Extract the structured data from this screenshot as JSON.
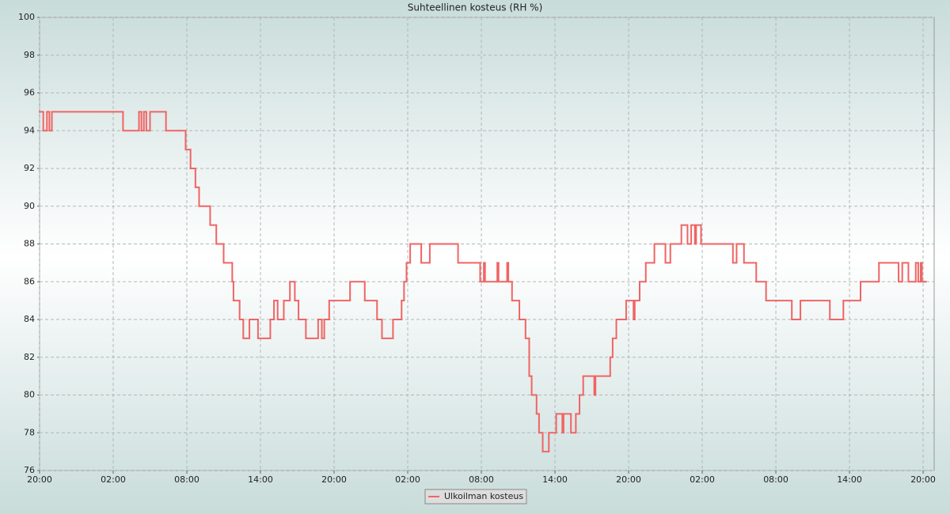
{
  "chart_data": {
    "type": "line",
    "title": "Suhteellinen kosteus (RH %)",
    "drawstyle": "steps-post",
    "grid": true,
    "xlim": [
      0,
      72.9
    ],
    "ylim": [
      76,
      100
    ],
    "xticks": [
      {
        "value": 0,
        "label": "20:00"
      },
      {
        "value": 6,
        "label": "02:00"
      },
      {
        "value": 12,
        "label": "08:00"
      },
      {
        "value": 18,
        "label": "14:00"
      },
      {
        "value": 24,
        "label": "20:00"
      },
      {
        "value": 30,
        "label": "02:00"
      },
      {
        "value": 36,
        "label": "08:00"
      },
      {
        "value": 42,
        "label": "14:00"
      },
      {
        "value": 48,
        "label": "20:00"
      },
      {
        "value": 54,
        "label": "02:00"
      },
      {
        "value": 60,
        "label": "08:00"
      },
      {
        "value": 66,
        "label": "14:00"
      },
      {
        "value": 72,
        "label": "20:00"
      }
    ],
    "yticks": [
      76,
      78,
      80,
      82,
      84,
      86,
      88,
      90,
      92,
      94,
      96,
      98,
      100
    ],
    "x": [
      0,
      0.3,
      0.6,
      0.8,
      1.0,
      6.8,
      8.1,
      8.3,
      8.5,
      8.7,
      9.0,
      10.3,
      11.9,
      12.3,
      12.7,
      13.0,
      13.9,
      14.4,
      15.0,
      15.7,
      15.8,
      16.3,
      16.6,
      17.1,
      17.8,
      18.8,
      19.1,
      19.4,
      19.9,
      20.4,
      20.8,
      21.1,
      21.7,
      22.7,
      23.0,
      23.2,
      23.6,
      25.3,
      26.5,
      27.5,
      27.9,
      28.8,
      29.5,
      29.7,
      29.9,
      30.2,
      31.1,
      31.8,
      34.1,
      35.9,
      36.2,
      36.3,
      37.3,
      37.4,
      38.1,
      38.2,
      38.5,
      39.1,
      39.6,
      39.9,
      40.1,
      40.5,
      40.7,
      41.0,
      41.5,
      42.1,
      42.6,
      42.7,
      43.3,
      43.7,
      44.0,
      44.3,
      45.2,
      45.3,
      46.5,
      46.7,
      47.0,
      47.8,
      48.4,
      48.5,
      48.9,
      49.4,
      50.1,
      51.0,
      51.4,
      52.3,
      52.8,
      53.1,
      53.4,
      53.5,
      53.9,
      56.5,
      56.8,
      57.4,
      58.4,
      59.2,
      61.3,
      62.0,
      64.4,
      65.5,
      66.9,
      68.4,
      70.0,
      70.3,
      70.8,
      71.4,
      71.6,
      71.8,
      71.9,
      72.1
    ],
    "series": [
      {
        "name": "Ulkoilman kosteus",
        "color": "#f06464",
        "values": [
          95,
          94,
          95,
          94,
          95,
          94,
          95,
          94,
          95,
          94,
          95,
          94,
          93,
          92,
          91,
          90,
          89,
          88,
          87,
          86,
          85,
          84,
          83,
          84,
          83,
          84,
          85,
          84,
          85,
          86,
          85,
          84,
          83,
          84,
          83,
          84,
          85,
          86,
          85,
          84,
          83,
          84,
          85,
          86,
          87,
          88,
          87,
          88,
          87,
          86,
          87,
          86,
          87,
          86,
          87,
          86,
          85,
          84,
          83,
          81,
          80,
          79,
          78,
          77,
          78,
          79,
          78,
          79,
          78,
          79,
          80,
          81,
          80,
          81,
          82,
          83,
          84,
          85,
          84,
          85,
          86,
          87,
          88,
          87,
          88,
          89,
          88,
          89,
          88,
          89,
          88,
          87,
          88,
          87,
          86,
          85,
          84,
          85,
          84,
          85,
          86,
          87,
          86,
          87,
          86,
          87,
          86,
          87,
          86,
          86
        ]
      }
    ]
  }
}
